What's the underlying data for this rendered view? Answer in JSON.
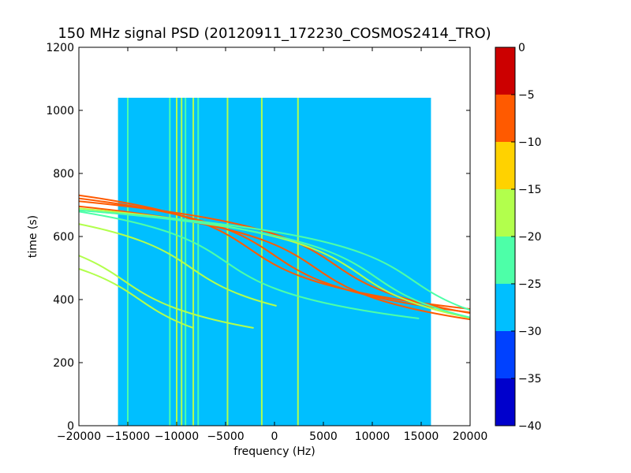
{
  "chart_data": {
    "type": "heatmap",
    "title": "150 MHz signal PSD (20120911_172230_COSMOS2414_TRO)",
    "xlabel": "frequency (Hz)",
    "ylabel": "time (s)",
    "xlim": [
      -20000,
      20000
    ],
    "ylim": [
      0,
      1200
    ],
    "xticks": [
      -20000,
      -15000,
      -10000,
      -5000,
      0,
      5000,
      10000,
      15000,
      20000
    ],
    "xtick_labels": [
      "−20000",
      "−15000",
      "−10000",
      "−5000",
      "0",
      "5000",
      "10000",
      "15000",
      "20000"
    ],
    "yticks": [
      0,
      200,
      400,
      600,
      800,
      1000,
      1200
    ],
    "ytick_labels": [
      "0",
      "200",
      "400",
      "600",
      "800",
      "1000",
      "1200"
    ],
    "data_extent": {
      "x": [
        -16000,
        16000
      ],
      "y": [
        0,
        1040
      ]
    },
    "background_level": -27.5,
    "colorbar": {
      "range": [
        -40,
        0
      ],
      "ticks": [
        0,
        -5,
        -10,
        -15,
        -20,
        -25,
        -30,
        -35,
        -40
      ],
      "tick_labels": [
        "0",
        "−5",
        "−10",
        "−15",
        "−20",
        "−25",
        "−30",
        "−35",
        "−40"
      ],
      "bands": [
        {
          "from": -40,
          "to": -35,
          "color": "#0000cc"
        },
        {
          "from": -35,
          "to": -30,
          "color": "#0041ff"
        },
        {
          "from": -30,
          "to": -25,
          "color": "#00bfff"
        },
        {
          "from": -25,
          "to": -20,
          "color": "#4dffa8"
        },
        {
          "from": -20,
          "to": -15,
          "color": "#b2ff4c"
        },
        {
          "from": -15,
          "to": -10,
          "color": "#ffd200"
        },
        {
          "from": -10,
          "to": -5,
          "color": "#ff5a00"
        },
        {
          "from": -5,
          "to": 0,
          "color": "#cc0000"
        }
      ]
    },
    "vertical_lines": [
      {
        "x": -15000,
        "level": -22
      },
      {
        "x": -10700,
        "level": -22
      },
      {
        "x": -10000,
        "level": -18
      },
      {
        "x": -9500,
        "level": -18
      },
      {
        "x": -9100,
        "level": -22
      },
      {
        "x": -8300,
        "level": -18
      },
      {
        "x": -7800,
        "level": -22
      },
      {
        "x": -4800,
        "level": -18
      },
      {
        "x": -1300,
        "level": -18
      },
      {
        "x": 2400,
        "level": -18
      }
    ],
    "doppler_tracks": [
      {
        "center_x": -15400,
        "center_y": 460,
        "level": -18,
        "y_range": [
          310,
          900
        ]
      },
      {
        "center_x": -8500,
        "center_y": 500,
        "level": -18,
        "y_range": [
          380,
          890
        ]
      },
      {
        "center_x": -5000,
        "center_y": 520,
        "level": -22,
        "y_range": [
          340,
          860
        ]
      },
      {
        "center_x": -2500,
        "center_y": 560,
        "level": -8,
        "y_range": [
          350,
          890
        ]
      },
      {
        "center_x": 0,
        "center_y": 540,
        "level": -8,
        "y_range": [
          320,
          900
        ]
      },
      {
        "center_x": 4200,
        "center_y": 500,
        "level": -8,
        "y_range": [
          80,
          890
        ]
      },
      {
        "center_x": 6200,
        "center_y": 510,
        "level": -8,
        "y_range": [
          60,
          890
        ]
      },
      {
        "center_x": 8700,
        "center_y": 480,
        "level": -18,
        "y_range": [
          80,
          880
        ]
      },
      {
        "center_x": 10400,
        "center_y": 470,
        "level": -22,
        "y_range": [
          90,
          870
        ]
      },
      {
        "center_x": 14200,
        "center_y": 460,
        "level": -22,
        "y_range": [
          70,
          880
        ]
      },
      {
        "center_x": -13800,
        "center_y": 400,
        "level": -18,
        "y_range": [
          310,
          580
        ]
      }
    ]
  }
}
